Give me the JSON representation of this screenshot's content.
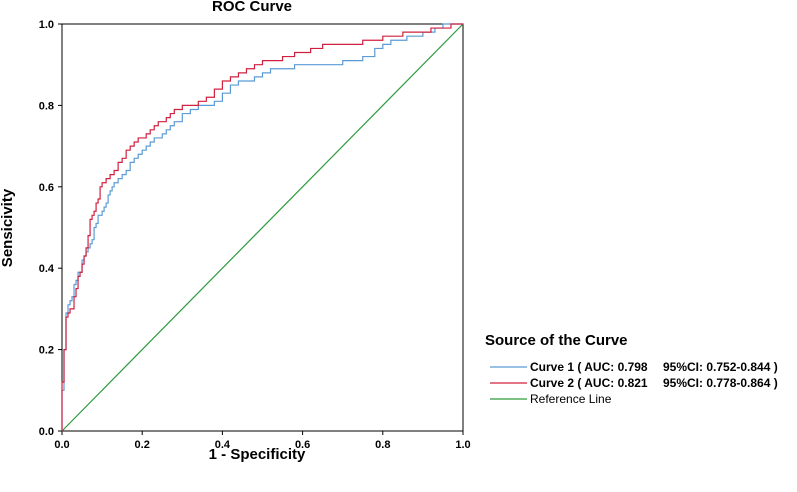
{
  "chart_data": {
    "type": "line",
    "title": "ROC Curve",
    "xlabel": "1 - Specificity",
    "ylabel": "Sensicivity",
    "xlim": [
      0,
      1
    ],
    "ylim": [
      0,
      1
    ],
    "xticks": [
      "0.0",
      "0.2",
      "0.4",
      "0.6",
      "0.8",
      "1.0"
    ],
    "yticks": [
      "0.0",
      "0.2",
      "0.4",
      "0.6",
      "0.8",
      "1.0"
    ],
    "grid": false,
    "legend_title": "Source of the Curve",
    "legend_position": "right",
    "series": [
      {
        "name": "Curve 1",
        "label": "Curve 1 ( AUC: 0.798",
        "ci": "95%CI: 0.752-0.844 )",
        "color": "#5b9bd5",
        "x": [
          0,
          0,
          0.005,
          0.005,
          0.01,
          0.01,
          0.015,
          0.015,
          0.02,
          0.025,
          0.03,
          0.03,
          0.035,
          0.04,
          0.04,
          0.05,
          0.05,
          0.055,
          0.06,
          0.065,
          0.07,
          0.075,
          0.08,
          0.085,
          0.09,
          0.1,
          0.105,
          0.11,
          0.115,
          0.12,
          0.125,
          0.13,
          0.14,
          0.15,
          0.16,
          0.17,
          0.18,
          0.19,
          0.2,
          0.21,
          0.22,
          0.23,
          0.24,
          0.25,
          0.26,
          0.27,
          0.28,
          0.3,
          0.32,
          0.34,
          0.36,
          0.38,
          0.4,
          0.42,
          0.44,
          0.46,
          0.48,
          0.5,
          0.52,
          0.55,
          0.58,
          0.6,
          0.65,
          0.7,
          0.72,
          0.75,
          0.78,
          0.8,
          0.82,
          0.84,
          0.86,
          0.88,
          0.9,
          0.93,
          0.95,
          0.97,
          1
        ],
        "y": [
          0,
          0.08,
          0.1,
          0.18,
          0.2,
          0.28,
          0.29,
          0.31,
          0.31,
          0.32,
          0.33,
          0.35,
          0.36,
          0.37,
          0.38,
          0.39,
          0.41,
          0.42,
          0.43,
          0.44,
          0.45,
          0.46,
          0.47,
          0.5,
          0.51,
          0.53,
          0.54,
          0.55,
          0.56,
          0.58,
          0.59,
          0.6,
          0.61,
          0.62,
          0.63,
          0.64,
          0.66,
          0.67,
          0.68,
          0.69,
          0.7,
          0.71,
          0.72,
          0.72,
          0.73,
          0.74,
          0.75,
          0.76,
          0.78,
          0.79,
          0.8,
          0.8,
          0.81,
          0.83,
          0.85,
          0.86,
          0.86,
          0.87,
          0.88,
          0.89,
          0.89,
          0.9,
          0.9,
          0.9,
          0.91,
          0.91,
          0.92,
          0.94,
          0.95,
          0.96,
          0.96,
          0.97,
          0.97,
          0.98,
          0.99,
          1,
          1
        ]
      },
      {
        "name": "Curve 2",
        "label": "Curve 2 ( AUC: 0.821",
        "ci": "95%CI: 0.778-0.864 )",
        "color": "#d0203f",
        "x": [
          0,
          0,
          0.005,
          0.005,
          0.01,
          0.01,
          0.015,
          0.02,
          0.025,
          0.03,
          0.035,
          0.04,
          0.045,
          0.05,
          0.055,
          0.06,
          0.065,
          0.07,
          0.075,
          0.08,
          0.085,
          0.09,
          0.095,
          0.1,
          0.11,
          0.12,
          0.13,
          0.14,
          0.15,
          0.16,
          0.17,
          0.18,
          0.19,
          0.2,
          0.21,
          0.22,
          0.23,
          0.24,
          0.25,
          0.26,
          0.27,
          0.28,
          0.3,
          0.32,
          0.34,
          0.36,
          0.38,
          0.4,
          0.42,
          0.44,
          0.46,
          0.48,
          0.5,
          0.52,
          0.55,
          0.58,
          0.6,
          0.62,
          0.65,
          0.7,
          0.75,
          0.8,
          0.85,
          0.9,
          0.92,
          0.95,
          0.97,
          1
        ],
        "y": [
          0,
          0.1,
          0.12,
          0.15,
          0.2,
          0.26,
          0.28,
          0.29,
          0.3,
          0.3,
          0.33,
          0.35,
          0.38,
          0.39,
          0.41,
          0.43,
          0.45,
          0.48,
          0.52,
          0.53,
          0.54,
          0.56,
          0.57,
          0.6,
          0.61,
          0.62,
          0.63,
          0.64,
          0.66,
          0.67,
          0.69,
          0.7,
          0.71,
          0.72,
          0.72,
          0.73,
          0.74,
          0.75,
          0.76,
          0.76,
          0.77,
          0.78,
          0.79,
          0.8,
          0.8,
          0.81,
          0.82,
          0.84,
          0.86,
          0.87,
          0.88,
          0.89,
          0.9,
          0.91,
          0.91,
          0.92,
          0.93,
          0.93,
          0.94,
          0.95,
          0.95,
          0.96,
          0.97,
          0.98,
          0.98,
          0.99,
          0.99,
          1
        ]
      },
      {
        "name": "Reference Line",
        "label": "Reference Line",
        "color": "#2e9a3e",
        "x": [
          0,
          1
        ],
        "y": [
          0,
          1
        ]
      }
    ]
  }
}
